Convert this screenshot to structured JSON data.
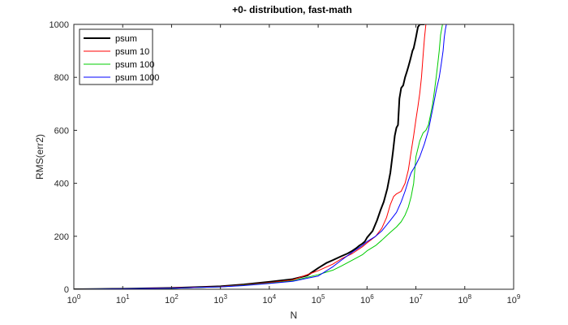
{
  "chart_data": {
    "type": "line",
    "title": "+0- distribution, fast-math",
    "xlabel": "N",
    "ylabel": "RMS(err2)",
    "xscale": "log",
    "xlim": [
      1,
      1000000000
    ],
    "ylim": [
      0,
      1000
    ],
    "x_ticks": [
      {
        "value": 1,
        "base": "10",
        "exp": "0"
      },
      {
        "value": 10,
        "base": "10",
        "exp": "1"
      },
      {
        "value": 100,
        "base": "10",
        "exp": "2"
      },
      {
        "value": 1000,
        "base": "10",
        "exp": "3"
      },
      {
        "value": 10000,
        "base": "10",
        "exp": "4"
      },
      {
        "value": 100000,
        "base": "10",
        "exp": "5"
      },
      {
        "value": 1000000,
        "base": "10",
        "exp": "6"
      },
      {
        "value": 10000000,
        "base": "10",
        "exp": "7"
      },
      {
        "value": 100000000,
        "base": "10",
        "exp": "8"
      },
      {
        "value": 1000000000,
        "base": "10",
        "exp": "9"
      }
    ],
    "y_ticks": [
      {
        "value": 0,
        "label": "0"
      },
      {
        "value": 200,
        "label": "200"
      },
      {
        "value": 400,
        "label": "400"
      },
      {
        "value": 600,
        "label": "600"
      },
      {
        "value": 800,
        "label": "800"
      },
      {
        "value": 1000,
        "label": "1000"
      }
    ],
    "grid": false,
    "legend_position": "top-left",
    "series": [
      {
        "name": "psum",
        "color": "#000000",
        "width": 2,
        "x": [
          1,
          10,
          100,
          1000,
          3000,
          10000,
          30000,
          60000,
          100000,
          150000,
          200000,
          300000,
          400000,
          500000,
          600000,
          700000,
          800000,
          900000,
          1000000,
          1300000,
          1600000,
          1900000,
          2200000,
          2600000,
          3000000,
          3400000,
          3700000,
          4000000,
          4300000,
          4600000,
          5000000,
          5500000,
          6000000,
          6500000,
          7000000,
          7500000,
          8000000,
          8500000,
          9000000,
          9500000,
          10000000,
          11000000,
          12000000,
          13000000,
          14000000,
          15000000
        ],
        "y": [
          0,
          2,
          5,
          11,
          18,
          28,
          38,
          52,
          80,
          100,
          110,
          125,
          135,
          145,
          155,
          165,
          172,
          180,
          195,
          220,
          260,
          300,
          330,
          380,
          440,
          520,
          580,
          610,
          620,
          720,
          760,
          770,
          800,
          820,
          840,
          860,
          880,
          900,
          910,
          930,
          950,
          990,
          1000,
          1000,
          1000,
          1000
        ]
      },
      {
        "name": "psum 10",
        "color": "#ff0000",
        "width": 1,
        "x": [
          1,
          10,
          100,
          1000,
          3000,
          10000,
          30000,
          100000,
          200000,
          300000,
          500000,
          800000,
          1000000,
          1500000,
          2000000,
          2500000,
          3000000,
          3500000,
          4000000,
          5000000,
          6000000,
          7000000,
          8000000,
          9000000,
          10000000,
          11000000,
          12000000,
          13000000,
          14000000,
          15000000,
          16000000,
          17000000
        ],
        "y": [
          0,
          2,
          5,
          10,
          16,
          25,
          35,
          70,
          95,
          115,
          135,
          160,
          175,
          200,
          230,
          270,
          320,
          350,
          360,
          370,
          400,
          450,
          520,
          580,
          640,
          690,
          740,
          800,
          880,
          950,
          1000,
          1000
        ]
      },
      {
        "name": "psum 100",
        "color": "#00cc00",
        "width": 1,
        "x": [
          1,
          10,
          100,
          1000,
          3000,
          10000,
          30000,
          100000,
          200000,
          300000,
          500000,
          800000,
          1000000,
          1500000,
          2000000,
          3000000,
          4000000,
          5000000,
          6000000,
          7000000,
          8000000,
          9000000,
          10000000,
          12000000,
          14000000,
          16000000,
          18000000,
          20000000,
          22000000,
          24000000,
          26000000,
          28000000,
          30000000,
          32000000,
          35000000
        ],
        "y": [
          0,
          2,
          4,
          9,
          15,
          23,
          32,
          55,
          72,
          88,
          110,
          130,
          145,
          165,
          185,
          215,
          235,
          255,
          280,
          310,
          350,
          400,
          500,
          560,
          590,
          600,
          620,
          660,
          700,
          750,
          800,
          850,
          900,
          960,
          1000
        ]
      },
      {
        "name": "psum 1000",
        "color": "#0000ff",
        "width": 1,
        "x": [
          1,
          10,
          100,
          1000,
          3000,
          10000,
          30000,
          100000,
          200000,
          300000,
          500000,
          800000,
          1000000,
          1500000,
          2000000,
          3000000,
          4000000,
          5000000,
          6000000,
          7000000,
          8000000,
          10000000,
          12000000,
          15000000,
          18000000,
          22000000,
          26000000,
          30000000,
          33000000,
          36000000,
          38000000,
          40000000,
          42000000,
          44000000
        ],
        "y": [
          0,
          2,
          4,
          9,
          14,
          22,
          30,
          50,
          85,
          110,
          140,
          165,
          180,
          200,
          220,
          260,
          290,
          330,
          370,
          410,
          440,
          470,
          500,
          550,
          600,
          680,
          750,
          800,
          850,
          900,
          950,
          980,
          1000,
          1000
        ]
      }
    ]
  }
}
